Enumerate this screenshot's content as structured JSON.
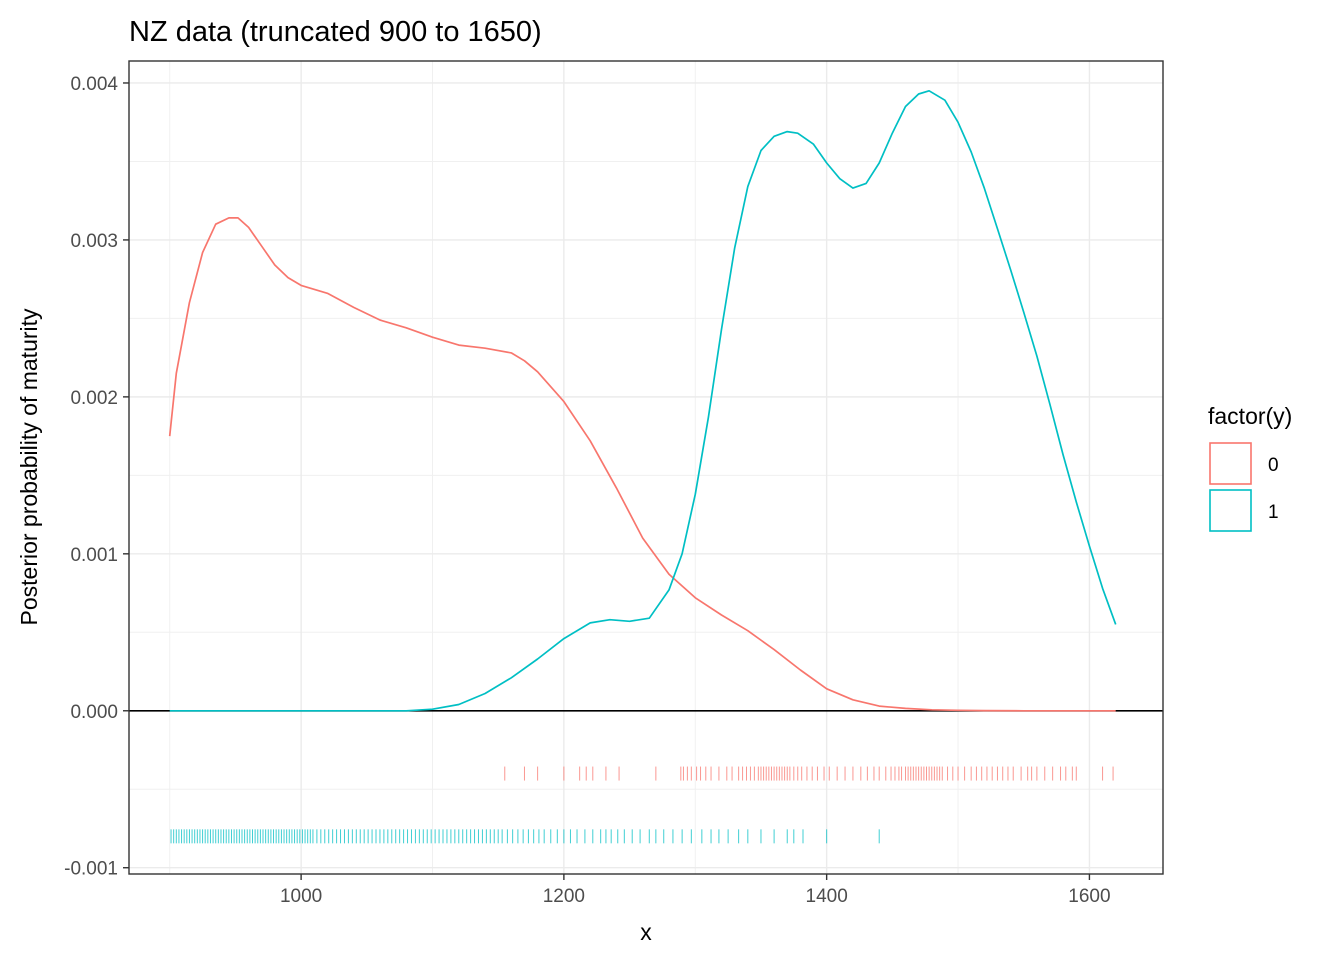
{
  "chart_data": {
    "type": "line",
    "title": "NZ data (truncated 900 to 1650)",
    "xlabel": "x",
    "ylabel": "Posterior probability of maturity",
    "xlim": [
      869,
      1656
    ],
    "ylim": [
      -0.00104,
      0.00414
    ],
    "x_ticks": [
      1000,
      1200,
      1400,
      1600
    ],
    "x_tick_labels": [
      "1000",
      "1200",
      "1400",
      "1600"
    ],
    "y_ticks": [
      -0.001,
      0.0,
      0.001,
      0.002,
      0.003,
      0.004
    ],
    "y_tick_labels": [
      "-0.001",
      "0.000",
      "0.001",
      "0.002",
      "0.003",
      "0.004"
    ],
    "grid": true,
    "hline": 0,
    "legend": {
      "title": "factor(y)",
      "position": "right"
    },
    "series": [
      {
        "name": "0",
        "color": "#F8766D",
        "x": [
          900,
          905,
          915,
          925,
          935,
          945,
          952,
          960,
          970,
          980,
          990,
          1000,
          1020,
          1040,
          1060,
          1080,
          1100,
          1120,
          1140,
          1160,
          1170,
          1180,
          1200,
          1220,
          1240,
          1260,
          1280,
          1300,
          1320,
          1340,
          1360,
          1380,
          1400,
          1420,
          1440,
          1460,
          1480,
          1500,
          1520,
          1550,
          1580,
          1620
        ],
        "y": [
          0.00175,
          0.00215,
          0.0026,
          0.00292,
          0.0031,
          0.00314,
          0.00314,
          0.00308,
          0.00296,
          0.00284,
          0.00276,
          0.00271,
          0.00266,
          0.00257,
          0.00249,
          0.00244,
          0.00238,
          0.00233,
          0.00231,
          0.00228,
          0.00223,
          0.00216,
          0.00197,
          0.00172,
          0.00142,
          0.0011,
          0.00087,
          0.00072,
          0.00061,
          0.00051,
          0.00039,
          0.00026,
          0.00014,
          7e-05,
          3e-05,
          1.5e-05,
          6e-06,
          3e-06,
          1e-06,
          0.0,
          0.0,
          0.0
        ]
      },
      {
        "name": "1",
        "color": "#00BFC4",
        "x": [
          900,
          1000,
          1080,
          1100,
          1120,
          1140,
          1160,
          1180,
          1200,
          1220,
          1235,
          1250,
          1265,
          1280,
          1290,
          1300,
          1310,
          1320,
          1330,
          1340,
          1350,
          1360,
          1370,
          1378,
          1390,
          1400,
          1410,
          1420,
          1430,
          1440,
          1450,
          1460,
          1470,
          1478,
          1490,
          1500,
          1510,
          1520,
          1530,
          1540,
          1550,
          1560,
          1570,
          1580,
          1590,
          1600,
          1610,
          1620
        ],
        "y": [
          0.0,
          0.0,
          0.0,
          1e-05,
          4e-05,
          0.00011,
          0.00021,
          0.00033,
          0.00046,
          0.00056,
          0.00058,
          0.00057,
          0.00059,
          0.00077,
          0.001,
          0.00138,
          0.00187,
          0.00243,
          0.00295,
          0.00334,
          0.00357,
          0.00366,
          0.00369,
          0.00368,
          0.00361,
          0.00349,
          0.00339,
          0.00333,
          0.00336,
          0.00349,
          0.00368,
          0.00385,
          0.00393,
          0.00395,
          0.00389,
          0.00375,
          0.00356,
          0.00333,
          0.00307,
          0.00281,
          0.00254,
          0.00226,
          0.00195,
          0.00163,
          0.00133,
          0.00105,
          0.00078,
          0.00055
        ]
      }
    ],
    "rugs": [
      {
        "name": "0",
        "color": "#F8766D",
        "y": -0.0004,
        "x": [
          1155,
          1170,
          1180,
          1200,
          1212,
          1217,
          1222,
          1232,
          1242,
          1270,
          1289,
          1291,
          1294,
          1297,
          1301,
          1304,
          1308,
          1312,
          1318,
          1324,
          1328,
          1333,
          1336,
          1339,
          1342,
          1345,
          1348,
          1350,
          1352,
          1354,
          1356,
          1358,
          1360,
          1362,
          1364,
          1366,
          1368,
          1370,
          1372,
          1375,
          1378,
          1381,
          1385,
          1389,
          1393,
          1398,
          1402,
          1408,
          1414,
          1420,
          1426,
          1431,
          1436,
          1440,
          1445,
          1449,
          1452,
          1455,
          1457,
          1460,
          1462,
          1464,
          1466,
          1468,
          1470,
          1472,
          1474,
          1476,
          1478,
          1480,
          1482,
          1484,
          1486,
          1488,
          1492,
          1496,
          1500,
          1505,
          1510,
          1514,
          1518,
          1522,
          1526,
          1530,
          1534,
          1538,
          1542,
          1548,
          1553,
          1556,
          1560,
          1566,
          1572,
          1578,
          1582,
          1587,
          1590,
          1610,
          1618
        ]
      },
      {
        "name": "1",
        "color": "#00BFC4",
        "y": -0.0008,
        "x": [
          901,
          903,
          905,
          907,
          909,
          911,
          913,
          915,
          917,
          919,
          921,
          923,
          925,
          927,
          929,
          931,
          933,
          935,
          937,
          939,
          941,
          943,
          945,
          947,
          949,
          951,
          953,
          955,
          957,
          959,
          961,
          963,
          965,
          967,
          969,
          971,
          973,
          975,
          977,
          979,
          981,
          983,
          985,
          987,
          989,
          991,
          993,
          995,
          997,
          999,
          1001,
          1003,
          1005,
          1007,
          1009,
          1012,
          1015,
          1018,
          1021,
          1024,
          1027,
          1030,
          1033,
          1036,
          1039,
          1042,
          1045,
          1048,
          1051,
          1054,
          1057,
          1060,
          1063,
          1066,
          1069,
          1072,
          1075,
          1078,
          1081,
          1084,
          1087,
          1090,
          1093,
          1096,
          1099,
          1102,
          1105,
          1108,
          1111,
          1114,
          1117,
          1120,
          1123,
          1126,
          1129,
          1132,
          1135,
          1138,
          1141,
          1144,
          1147,
          1150,
          1153,
          1157,
          1161,
          1165,
          1169,
          1173,
          1177,
          1181,
          1185,
          1190,
          1195,
          1200,
          1205,
          1210,
          1216,
          1222,
          1228,
          1232,
          1236,
          1241,
          1246,
          1252,
          1258,
          1265,
          1270,
          1276,
          1283,
          1290,
          1297,
          1305,
          1312,
          1318,
          1325,
          1333,
          1340,
          1350,
          1360,
          1370,
          1375,
          1382,
          1400,
          1440
        ]
      }
    ]
  }
}
